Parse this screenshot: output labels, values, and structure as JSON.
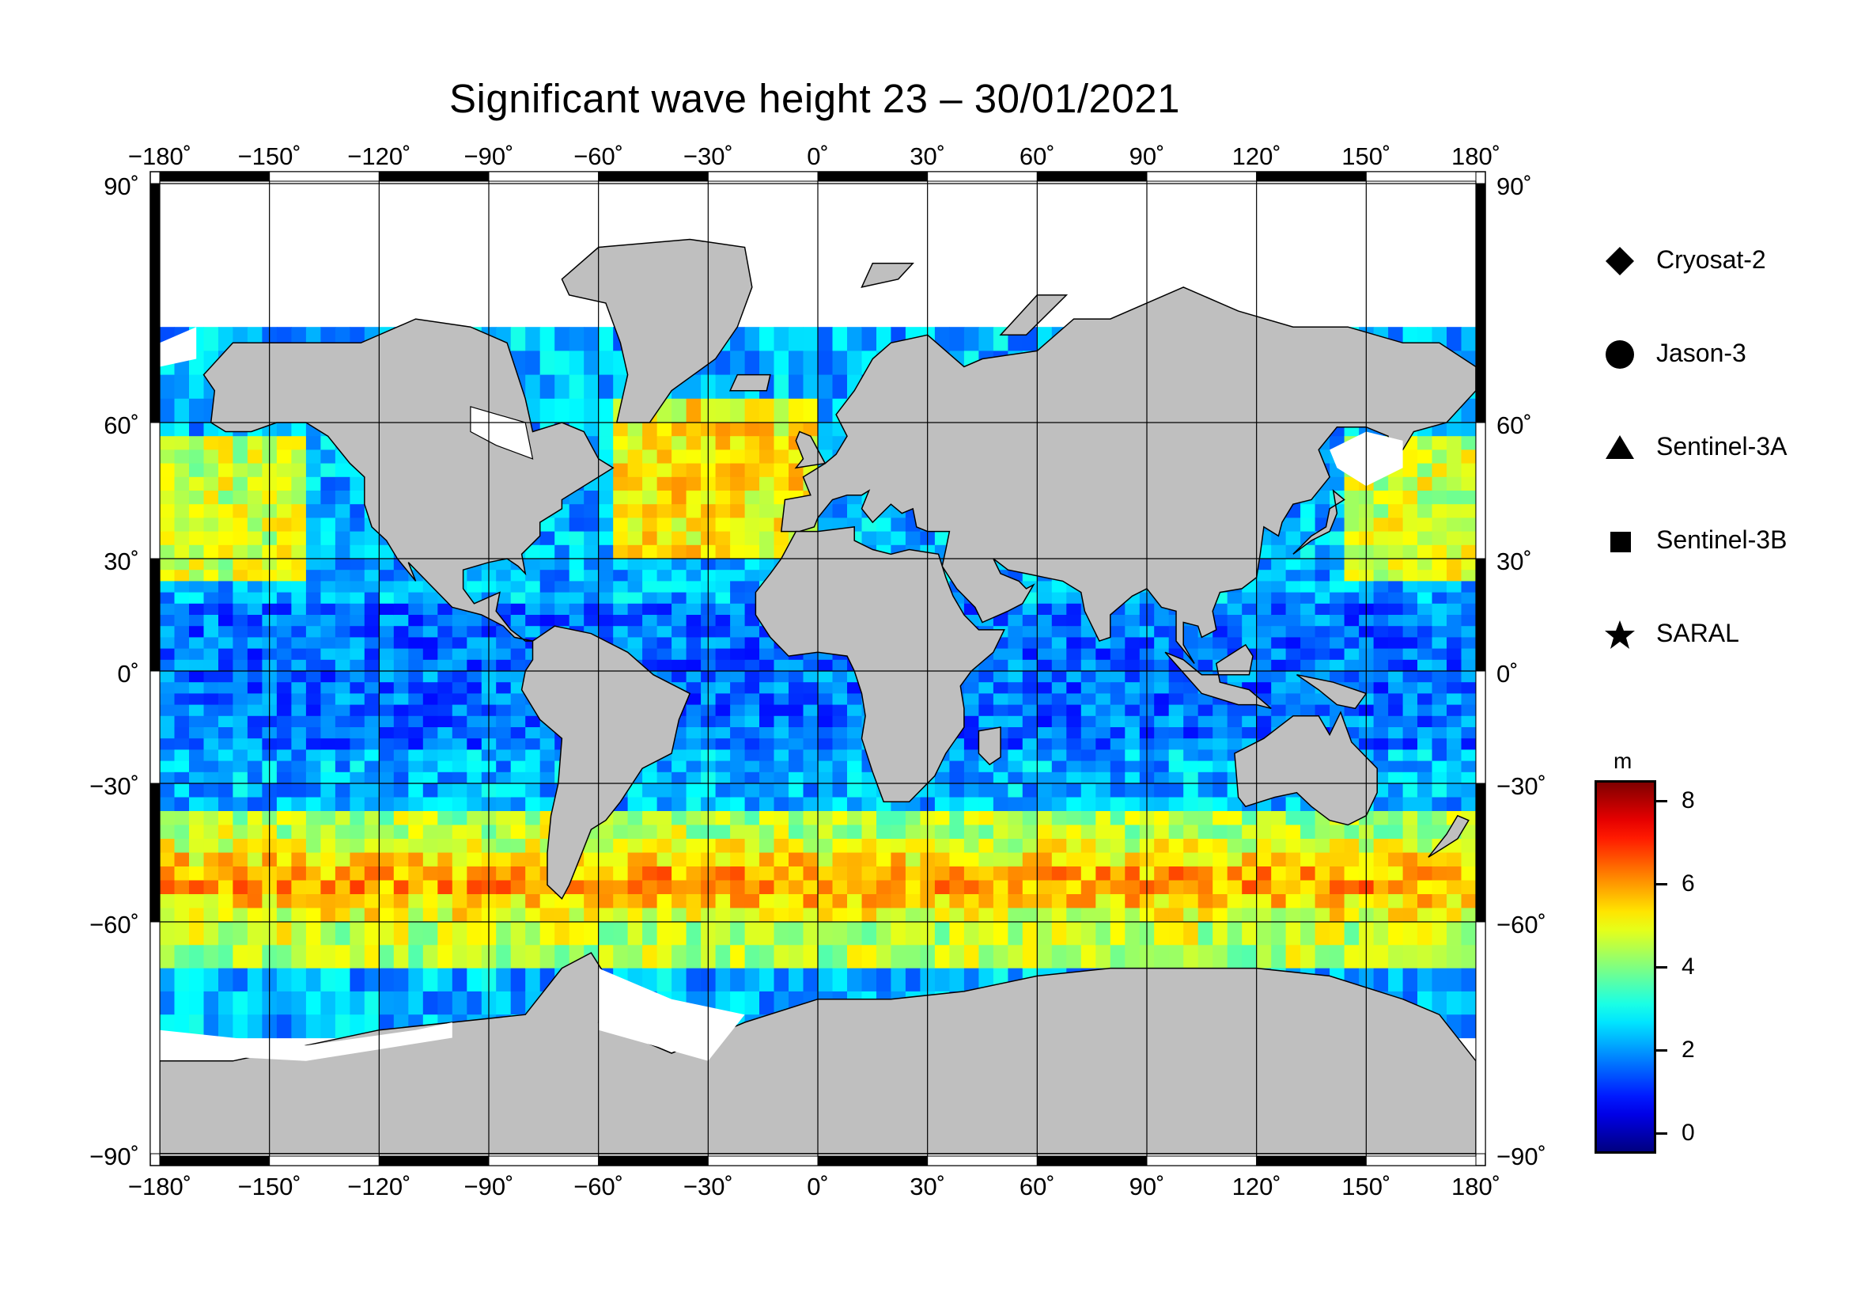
{
  "title": "Significant wave height 23 – 30/01/2021",
  "map": {
    "lon_ticks": [
      "−180˚",
      "−150˚",
      "−120˚",
      "−90˚",
      "−60˚",
      "−30˚",
      "0˚",
      "30˚",
      "60˚",
      "90˚",
      "120˚",
      "150˚",
      "180˚"
    ],
    "lat_ticks_left": [
      "90˚",
      "60˚",
      "30˚",
      "0˚",
      "−30˚",
      "−60˚",
      "−90˚"
    ],
    "lat_ticks_right": [
      "90˚",
      "60˚",
      "30˚",
      "0˚",
      "−30˚",
      "−60˚",
      "−90˚"
    ],
    "lat_values": [
      90,
      60,
      30,
      0,
      -30,
      -60,
      -90
    ],
    "lon_values": [
      -180,
      -150,
      -120,
      -90,
      -60,
      -30,
      0,
      30,
      60,
      90,
      120,
      150,
      180
    ],
    "land_color": "#bfbfbf",
    "ice_color": "#ffffff"
  },
  "legend": {
    "items": [
      {
        "label": "Cryosat-2",
        "symbol": "diamond"
      },
      {
        "label": "Jason-3",
        "symbol": "circle"
      },
      {
        "label": "Sentinel-3A",
        "symbol": "triangle"
      },
      {
        "label": "Sentinel-3B",
        "symbol": "square"
      },
      {
        "label": "SARAL",
        "symbol": "star"
      }
    ]
  },
  "colorbar": {
    "unit": "m",
    "ticks": [
      "0",
      "2",
      "4",
      "6",
      "8"
    ],
    "tick_values": [
      0,
      2,
      4,
      6,
      8
    ],
    "min": -0.5,
    "max": 8.5,
    "colormap": "jet"
  }
}
